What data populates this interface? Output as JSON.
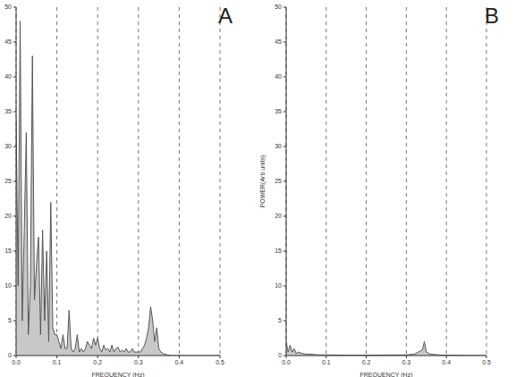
{
  "chart_data": [
    {
      "type": "area",
      "title": "A",
      "x_label": "FREQUENCY (Hz)",
      "color": "#c8c8c8",
      "grid": true,
      "xlim": [
        0,
        0.5
      ],
      "ylim": [
        0,
        50
      ],
      "xticks": [
        {
          "value": 0,
          "label": "0.0"
        },
        0.1,
        0.2,
        0.3,
        0.4,
        0.5
      ],
      "yticks": [
        0,
        5,
        10,
        15,
        20,
        25,
        30,
        35,
        40,
        45,
        50
      ],
      "x": [
        0,
        0.005,
        0.01,
        0.015,
        0.02,
        0.025,
        0.03,
        0.035,
        0.04,
        0.045,
        0.05,
        0.055,
        0.06,
        0.065,
        0.07,
        0.075,
        0.08,
        0.085,
        0.09,
        0.095,
        0.1,
        0.105,
        0.11,
        0.115,
        0.12,
        0.125,
        0.13,
        0.135,
        0.14,
        0.145,
        0.15,
        0.155,
        0.16,
        0.165,
        0.17,
        0.175,
        0.18,
        0.185,
        0.19,
        0.195,
        0.2,
        0.205,
        0.21,
        0.215,
        0.22,
        0.225,
        0.23,
        0.235,
        0.24,
        0.245,
        0.25,
        0.255,
        0.26,
        0.265,
        0.27,
        0.275,
        0.28,
        0.285,
        0.29,
        0.295,
        0.3,
        0.305,
        0.31,
        0.315,
        0.32,
        0.325,
        0.33,
        0.335,
        0.34,
        0.345,
        0.35,
        0.355,
        0.36,
        0.37,
        0.38,
        0.4,
        0.5
      ],
      "values": [
        34,
        10,
        48,
        5,
        18,
        32,
        3,
        10,
        43,
        8,
        13,
        17,
        3,
        18,
        5,
        15,
        2,
        22,
        4,
        3,
        3,
        2,
        1,
        3,
        1,
        1,
        6.5,
        1,
        0.5,
        1,
        3,
        0.5,
        1,
        0.5,
        1,
        2,
        1.5,
        1,
        2.5,
        1.5,
        2.5,
        1,
        0.5,
        1.5,
        0.8,
        1,
        0.5,
        1.5,
        0.5,
        1,
        1.2,
        0.5,
        0.8,
        0.5,
        1,
        0.5,
        0.5,
        1,
        0.5,
        0.5,
        0.5,
        0.5,
        1,
        1.5,
        2.5,
        4,
        7,
        5,
        2,
        4,
        1,
        0.5,
        0.3,
        0.1,
        0,
        0,
        0
      ]
    },
    {
      "type": "area",
      "title": "B",
      "x_label": "FREQUENCY (Hz)",
      "y_label": "POWER(Arb units)",
      "color": "#c8c8c8",
      "grid": true,
      "xlim": [
        0,
        0.5
      ],
      "ylim": [
        0,
        50
      ],
      "xticks": [
        {
          "value": 0,
          "label": "0.0"
        },
        0.1,
        0.2,
        0.3,
        0.4,
        0.5
      ],
      "yticks": [
        0,
        5,
        10,
        15,
        20,
        25,
        30,
        35,
        40,
        45,
        50
      ],
      "x": [
        0,
        0.005,
        0.01,
        0.015,
        0.02,
        0.025,
        0.03,
        0.04,
        0.05,
        0.06,
        0.08,
        0.1,
        0.15,
        0.2,
        0.3,
        0.32,
        0.33,
        0.34,
        0.345,
        0.35,
        0.36,
        0.38,
        0.4,
        0.5
      ],
      "values": [
        2,
        0.5,
        1.5,
        0.5,
        1,
        0.3,
        0.5,
        0.3,
        0.2,
        0.2,
        0.1,
        0.1,
        0.05,
        0.05,
        0.1,
        0.2,
        0.5,
        0.8,
        2,
        0.5,
        0.2,
        0.1,
        0.05,
        0
      ]
    }
  ]
}
